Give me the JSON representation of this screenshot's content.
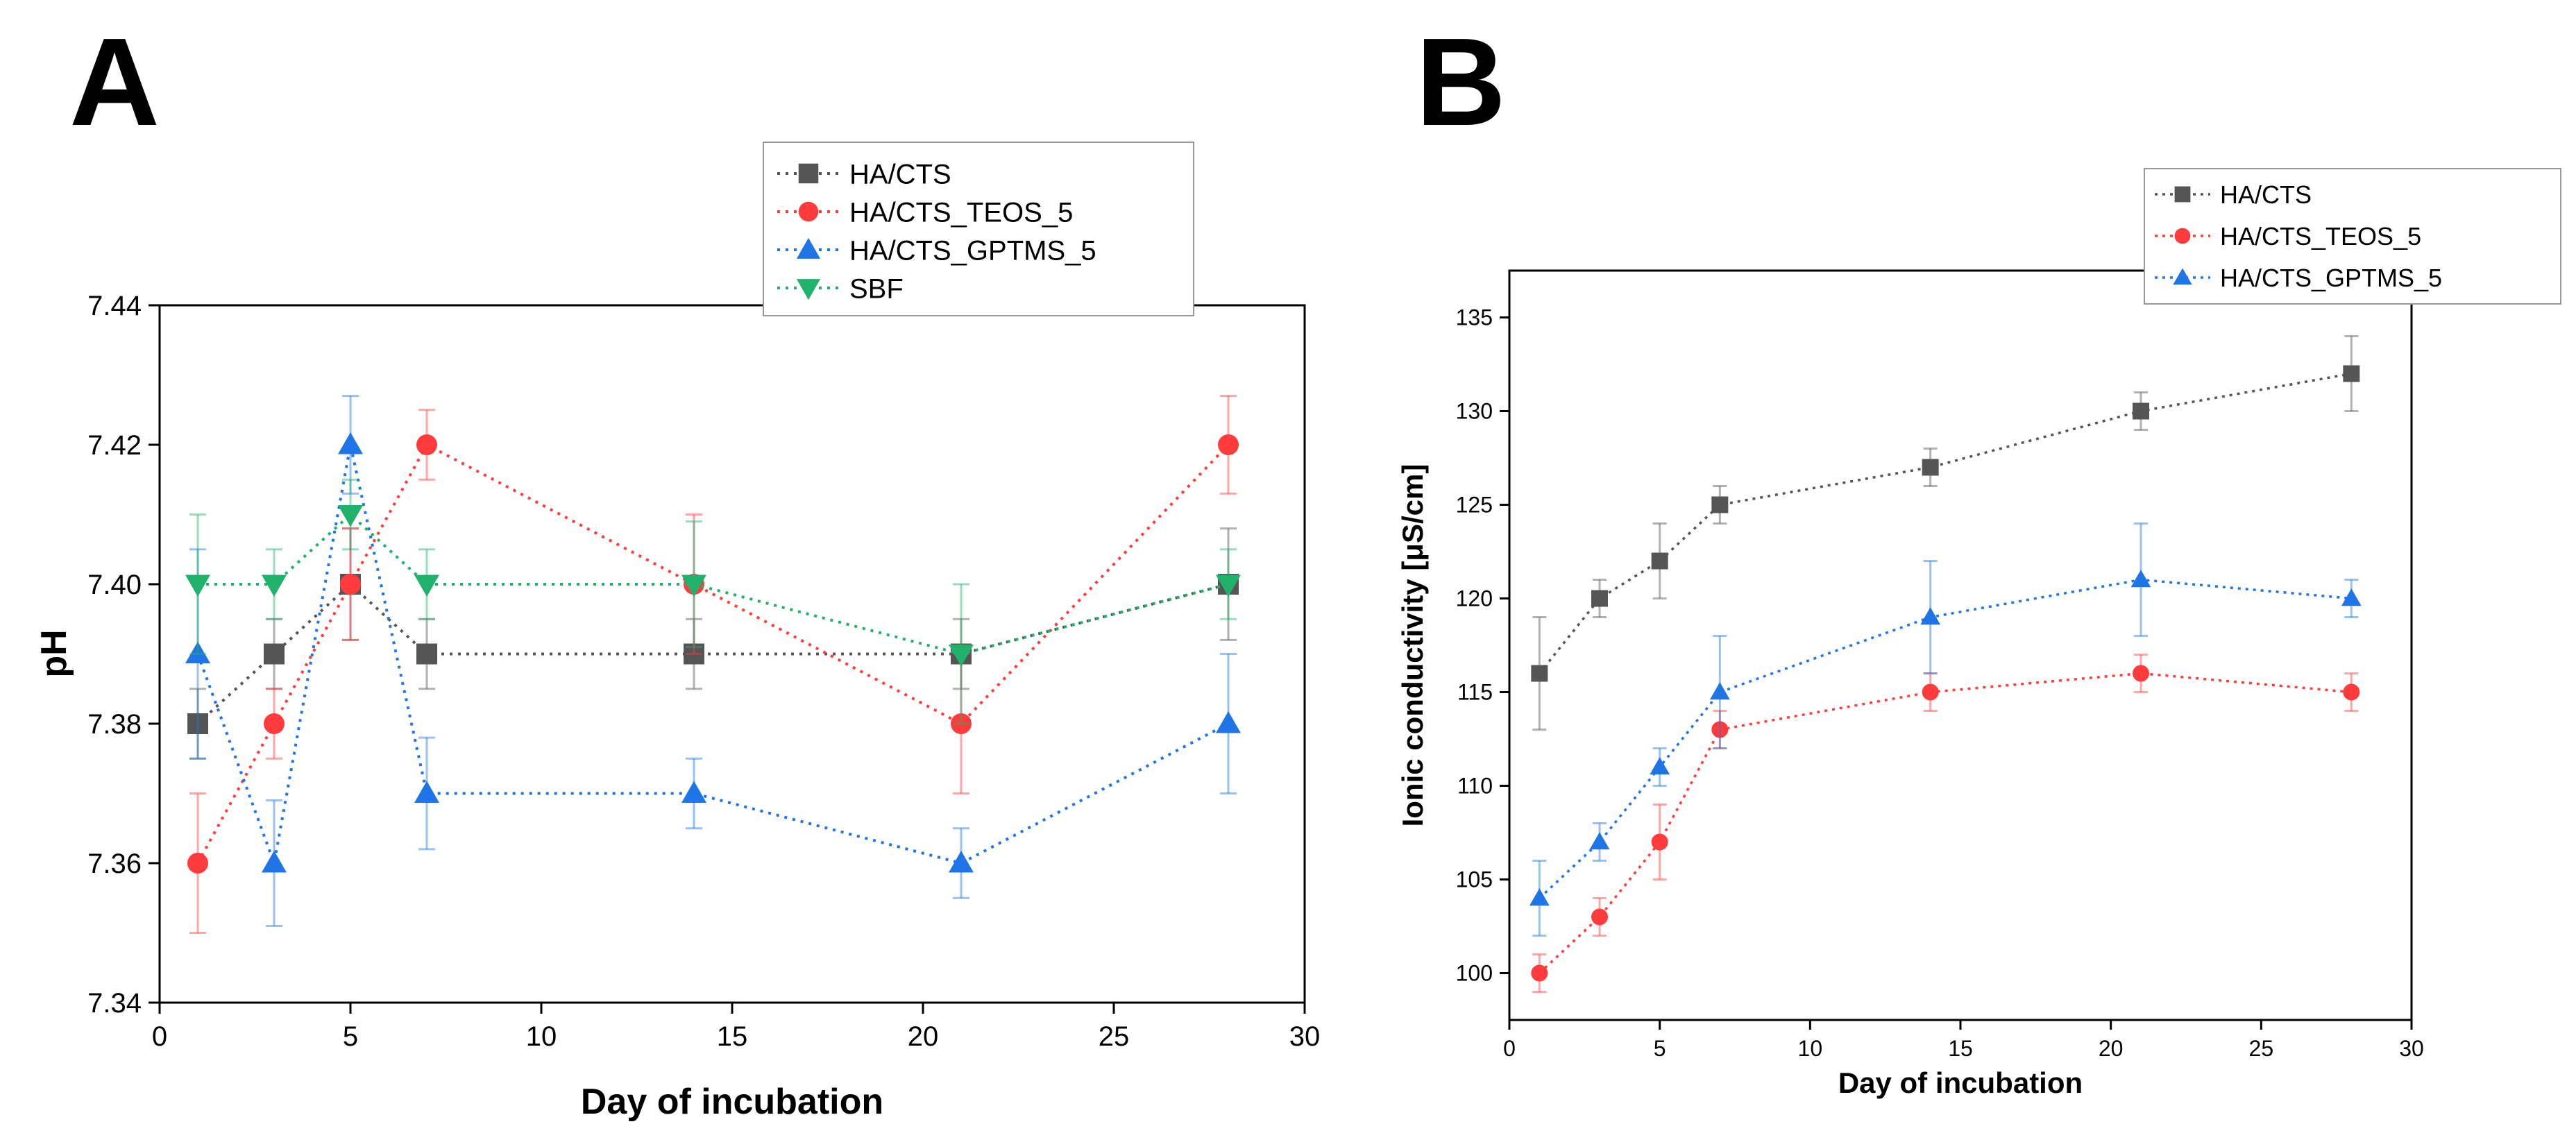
{
  "colors": {
    "HA/CTS": "#555555",
    "HA/CTS_TEOS_5": "#ff3b3b",
    "HA/CTS_GPTMS_5": "#1f75e6",
    "SBF": "#20b26b"
  },
  "chart_data": [
    {
      "panel": "A",
      "type": "line",
      "xlabel": "Day of incubation",
      "ylabel": "pH",
      "xlim": [
        0,
        30
      ],
      "ylim": [
        7.34,
        7.44
      ],
      "xticks": [
        0,
        5,
        10,
        15,
        20,
        25,
        30
      ],
      "yticks": [
        7.34,
        7.36,
        7.38,
        7.4,
        7.42,
        7.44
      ],
      "ytick_labels": [
        "7.34",
        "7.36",
        "7.38",
        "7.40",
        "7.42",
        "7.44"
      ],
      "legend_position": "top-right",
      "series": [
        {
          "name": "HA/CTS",
          "marker": "square",
          "color": "#555555",
          "x": [
            1,
            3,
            5,
            7,
            14,
            21,
            28
          ],
          "y": [
            7.38,
            7.39,
            7.4,
            7.39,
            7.39,
            7.39,
            7.4
          ],
          "err": [
            0.005,
            0.005,
            0.008,
            0.005,
            0.005,
            0.005,
            0.008
          ]
        },
        {
          "name": "HA/CTS_TEOS_5",
          "marker": "circle",
          "color": "#ff3b3b",
          "x": [
            1,
            3,
            5,
            7,
            14,
            21,
            28
          ],
          "y": [
            7.36,
            7.38,
            7.4,
            7.42,
            7.4,
            7.38,
            7.42
          ],
          "err": [
            0.01,
            0.005,
            0.008,
            0.005,
            0.01,
            0.01,
            0.007
          ]
        },
        {
          "name": "HA/CTS_GPTMS_5",
          "marker": "triangle-up",
          "color": "#1f75e6",
          "x": [
            1,
            3,
            5,
            7,
            14,
            21,
            28
          ],
          "y": [
            7.39,
            7.36,
            7.42,
            7.37,
            7.37,
            7.36,
            7.38
          ],
          "err": [
            0.015,
            0.009,
            0.007,
            0.008,
            0.005,
            0.005,
            0.01
          ]
        },
        {
          "name": "SBF",
          "marker": "triangle-down",
          "color": "#20b26b",
          "x": [
            1,
            3,
            5,
            7,
            14,
            21,
            28
          ],
          "y": [
            7.4,
            7.4,
            7.41,
            7.4,
            7.4,
            7.39,
            7.4
          ],
          "err": [
            0.01,
            0.005,
            0.005,
            0.005,
            0.009,
            0.01,
            0.005
          ]
        }
      ]
    },
    {
      "panel": "B",
      "type": "line",
      "xlabel": "Day of incubation",
      "ylabel": "Ionic conductivity [μS/cm]",
      "xlim": [
        0,
        30
      ],
      "ylim": [
        97.5,
        137.5
      ],
      "xticks": [
        0,
        5,
        10,
        15,
        20,
        25,
        30
      ],
      "yticks": [
        100,
        105,
        110,
        115,
        120,
        125,
        130,
        135
      ],
      "ytick_labels": [
        "100",
        "105",
        "110",
        "115",
        "120",
        "125",
        "130",
        "135"
      ],
      "legend_position": "top-right",
      "series": [
        {
          "name": "HA/CTS",
          "marker": "square",
          "color": "#555555",
          "x": [
            1,
            3,
            5,
            7,
            14,
            21,
            28
          ],
          "y": [
            116,
            120,
            122,
            125,
            127,
            130,
            132
          ],
          "err": [
            3,
            1,
            2,
            1,
            1,
            1,
            2
          ]
        },
        {
          "name": "HA/CTS_TEOS_5",
          "marker": "circle",
          "color": "#ff3b3b",
          "x": [
            1,
            3,
            5,
            7,
            14,
            21,
            28
          ],
          "y": [
            100,
            103,
            107,
            113,
            115,
            116,
            115
          ],
          "err": [
            1,
            1,
            2,
            1,
            1,
            1,
            1
          ]
        },
        {
          "name": "HA/CTS_GPTMS_5",
          "marker": "triangle-up",
          "color": "#1f75e6",
          "x": [
            1,
            3,
            5,
            7,
            14,
            21,
            28
          ],
          "y": [
            104,
            107,
            111,
            115,
            119,
            121,
            120
          ],
          "err": [
            2,
            1,
            1,
            3,
            3,
            3,
            1
          ]
        }
      ]
    }
  ]
}
